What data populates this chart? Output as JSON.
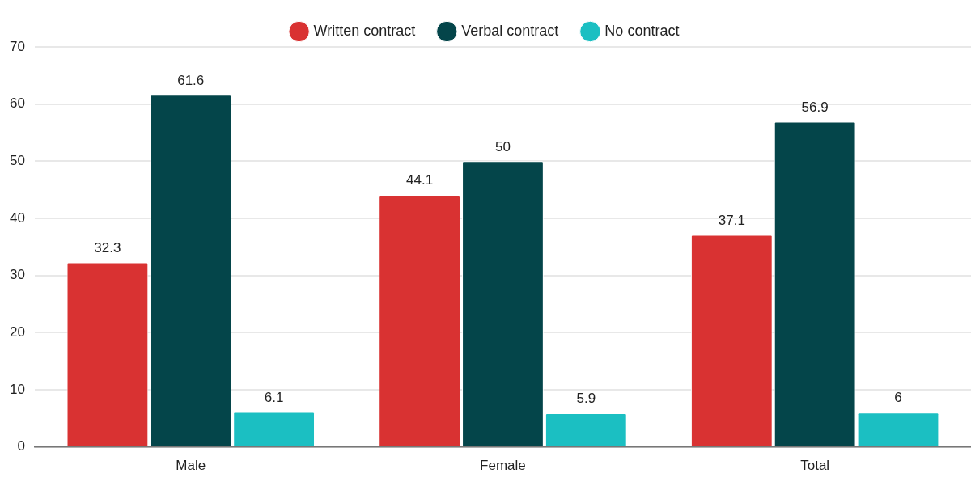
{
  "chart_data": {
    "type": "bar",
    "categories": [
      "Male",
      "Female",
      "Total"
    ],
    "series": [
      {
        "name": "Written contract",
        "color": "#d93232",
        "values": [
          32.3,
          44.1,
          37.1
        ]
      },
      {
        "name": "Verbal contract",
        "color": "#04454a",
        "values": [
          61.6,
          50,
          56.9
        ]
      },
      {
        "name": "No contract",
        "color": "#1bbfc2",
        "values": [
          6.1,
          5.9,
          6
        ]
      }
    ],
    "ylim": [
      0,
      70
    ],
    "yticks": [
      0,
      10,
      20,
      30,
      40,
      50,
      60,
      70
    ],
    "grid": "y",
    "legend": "top",
    "data_labels": true
  }
}
